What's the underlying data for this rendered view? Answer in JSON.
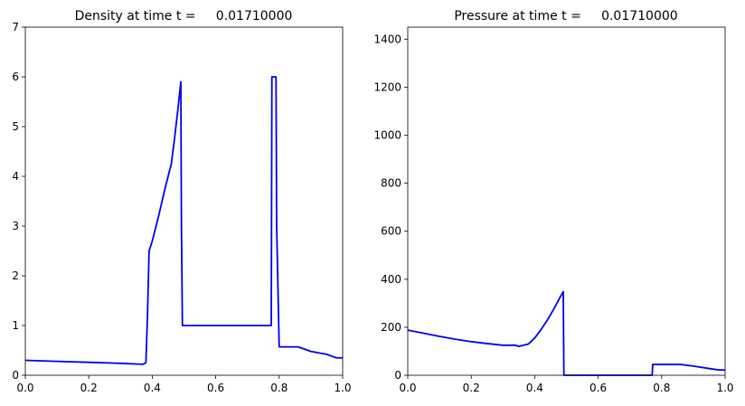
{
  "chart_data": [
    {
      "type": "line",
      "title": "Density at time t =     0.01710000",
      "xlabel": "",
      "ylabel": "",
      "xlim": [
        0,
        1
      ],
      "ylim": [
        0,
        7
      ],
      "xticks": [
        0.0,
        0.2,
        0.4,
        0.6,
        0.8,
        1.0
      ],
      "xtick_labels": [
        "0.0",
        "0.2",
        "0.4",
        "0.6",
        "0.8",
        "1.0"
      ],
      "yticks": [
        0,
        1,
        2,
        3,
        4,
        5,
        6,
        7
      ],
      "ytick_labels": [
        "0",
        "1",
        "2",
        "3",
        "4",
        "5",
        "6",
        "7"
      ],
      "grid": false,
      "color": "#0000ee",
      "series": [
        {
          "x": [
            0.0,
            0.1,
            0.2,
            0.3,
            0.37,
            0.38,
            0.385,
            0.39,
            0.4,
            0.42,
            0.44,
            0.46,
            0.47,
            0.48,
            0.49,
            0.492,
            0.495,
            0.6,
            0.7,
            0.775,
            0.777,
            0.79,
            0.792,
            0.8,
            0.86,
            0.9,
            0.95,
            0.98,
            1.0
          ],
          "y": [
            0.3,
            0.28,
            0.26,
            0.24,
            0.22,
            0.25,
            1.2,
            2.5,
            2.7,
            3.2,
            3.75,
            4.25,
            4.75,
            5.3,
            5.9,
            3.0,
            1.0,
            1.0,
            1.0,
            1.0,
            6.0,
            6.0,
            3.0,
            0.57,
            0.57,
            0.48,
            0.42,
            0.35,
            0.35
          ]
        }
      ]
    },
    {
      "type": "line",
      "title": "Pressure at time t =     0.01710000",
      "xlabel": "",
      "ylabel": "",
      "xlim": [
        0,
        1
      ],
      "ylim": [
        0,
        1450
      ],
      "xticks": [
        0.0,
        0.2,
        0.4,
        0.6,
        0.8,
        1.0
      ],
      "xtick_labels": [
        "0.0",
        "0.2",
        "0.4",
        "0.6",
        "0.8",
        "1.0"
      ],
      "yticks": [
        0,
        200,
        400,
        600,
        800,
        1000,
        1200,
        1400
      ],
      "ytick_labels": [
        "0",
        "200",
        "400",
        "600",
        "800",
        "1000",
        "1200",
        "1400"
      ],
      "grid": false,
      "color": "#0000ee",
      "series": [
        {
          "x": [
            0.0,
            0.05,
            0.1,
            0.15,
            0.2,
            0.25,
            0.3,
            0.34,
            0.35,
            0.36,
            0.38,
            0.4,
            0.42,
            0.44,
            0.46,
            0.48,
            0.49,
            0.492,
            0.5,
            0.6,
            0.7,
            0.77,
            0.772,
            0.78,
            0.86,
            0.9,
            0.95,
            0.98,
            1.0
          ],
          "y": [
            188,
            175,
            162,
            150,
            140,
            132,
            125,
            125,
            120,
            124,
            130,
            155,
            190,
            230,
            275,
            325,
            348,
            0,
            0,
            0,
            0,
            0,
            45,
            45,
            45,
            38,
            28,
            22,
            22
          ]
        }
      ]
    }
  ]
}
